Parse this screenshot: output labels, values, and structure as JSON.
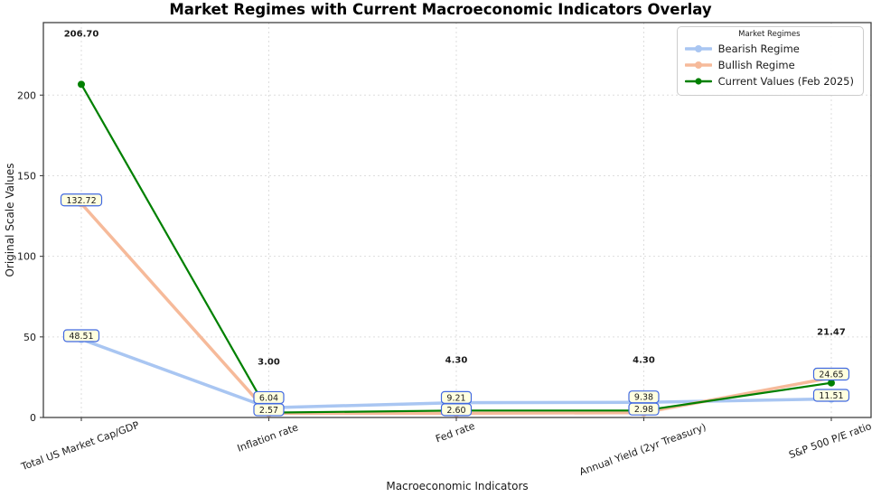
{
  "chart_data": {
    "type": "line",
    "title": "Market Regimes with Current Macroeconomic Indicators Overlay",
    "xlabel": "Macroeconomic Indicators",
    "ylabel": "Original Scale Values",
    "categories": [
      "Total US Market Cap/GDP",
      "Inflation rate",
      "Fed rate",
      "Annual Yield (2yr Treasury)",
      "S&P 500 P/E ratio"
    ],
    "yticks": [
      0,
      50,
      100,
      150,
      200
    ],
    "ylim": [
      0,
      245
    ],
    "grid": true,
    "legend": {
      "title": "Market Regimes",
      "position": "upper right"
    },
    "series": [
      {
        "name": "Bearish Regime",
        "color": "#a9c6f2",
        "values": [
          48.51,
          6.04,
          9.21,
          9.38,
          11.51
        ],
        "label_style": "box"
      },
      {
        "name": "Bullish Regime",
        "color": "#f6ba9a",
        "values": [
          132.72,
          2.57,
          2.6,
          2.98,
          24.65
        ],
        "label_style": "box"
      },
      {
        "name": "Current Values (Feb 2025)",
        "color": "#008000",
        "values": [
          206.7,
          3.0,
          4.3,
          4.3,
          21.47
        ],
        "label_style": "value-text",
        "label_color": "#006400"
      }
    ],
    "annotation_box": {
      "fill": "#ffffe0",
      "border": "#4169e1",
      "text_color": "#1a1a1a"
    }
  }
}
